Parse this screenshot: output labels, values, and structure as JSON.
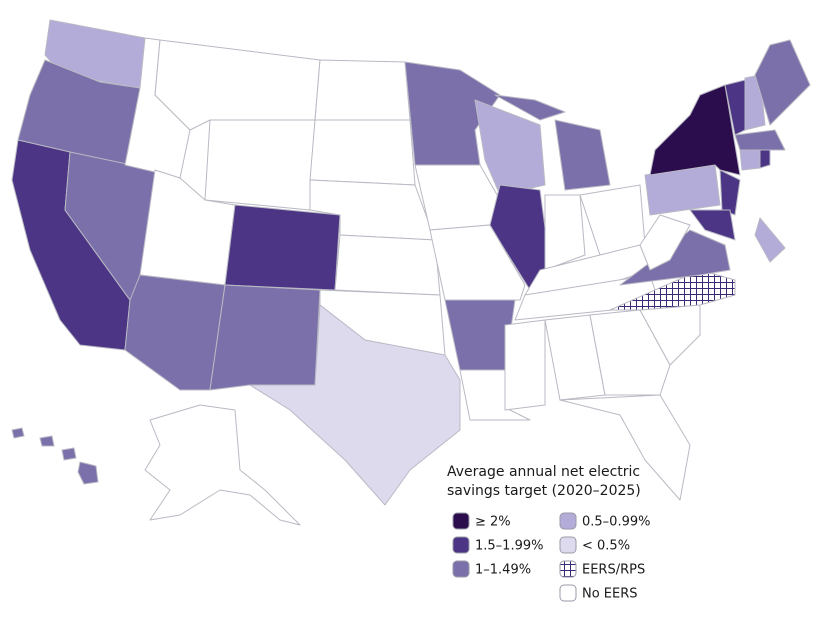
{
  "legend": {
    "title": [
      "Average annual net electric",
      "savings target (2020–2025)"
    ],
    "items": [
      {
        "label": "≥ 2%",
        "color": "#2b0d4d"
      },
      {
        "label": "1.5–1.99%",
        "color": "#4b3584"
      },
      {
        "label": "1–1.49%",
        "color": "#7c70aa"
      },
      {
        "label": "0.5–0.99%",
        "color": "#b3acd9"
      },
      {
        "label": "< 0.5%",
        "color": "#dddaee"
      },
      {
        "label": "EERS/RPS",
        "color": "#3b2a73",
        "pattern": "grid"
      },
      {
        "label": "No EERS",
        "color": "#ffffff"
      }
    ]
  }
}
